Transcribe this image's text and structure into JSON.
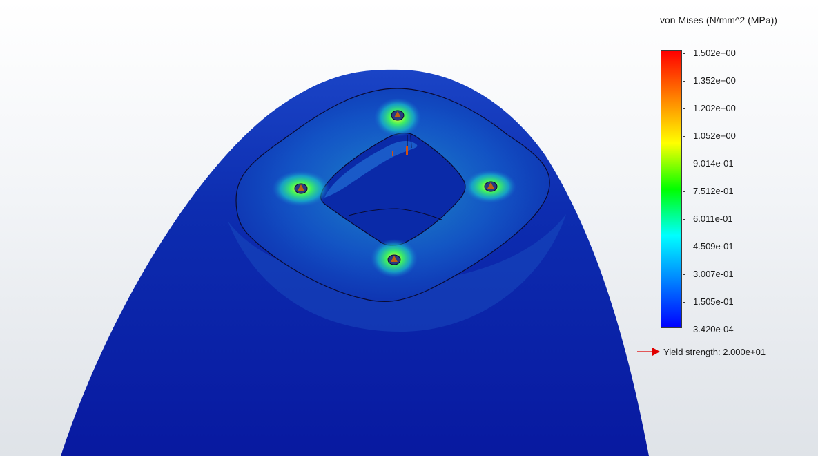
{
  "legend": {
    "title": "von Mises (N/mm^2 (MPa))",
    "ticks": [
      "1.502e+00",
      "1.352e+00",
      "1.202e+00",
      "1.052e+00",
      "9.014e-01",
      "7.512e-01",
      "6.011e-01",
      "4.509e-01",
      "3.007e-01",
      "1.505e-01",
      "3.420e-04"
    ],
    "gradient_colors": [
      "#ff0000",
      "#ff8000",
      "#ffff00",
      "#00ff00",
      "#00ffff",
      "#0080ff",
      "#0000ff"
    ],
    "yield_label": "Yield strength: 2.000e+01",
    "yield_arrow_color": "#e00000"
  },
  "model": {
    "icon": "stress-plot-shell",
    "colors": {
      "low": "#0d1fa8",
      "mid": "#1e8fd8",
      "high": "#22e060",
      "peak": "#c06010"
    }
  }
}
